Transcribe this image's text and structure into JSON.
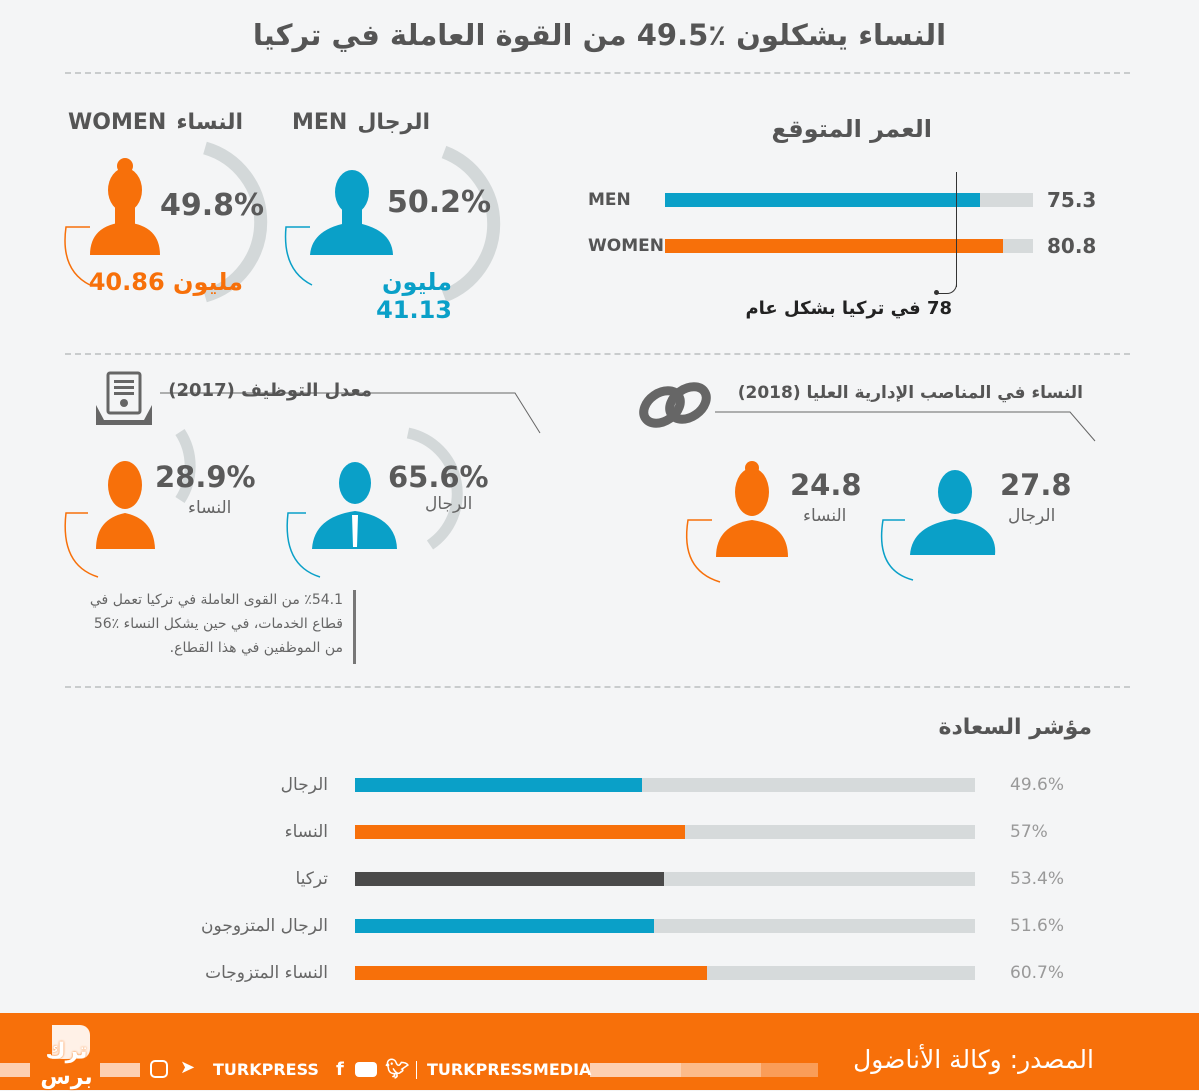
{
  "title": "النساء يشكلون ٪49.5 من القوة العاملة في تركيا",
  "colors": {
    "women": "#f7700a",
    "men": "#0aa0c8",
    "turkey": "#4a4a4a",
    "track": "#d6dadb"
  },
  "population": {
    "women": {
      "label_en": "WOMEN",
      "label_ar": "النساء",
      "percent": "49.8%",
      "count": "40.86",
      "unit": "مليون"
    },
    "men": {
      "label_en": "MEN",
      "label_ar": "الرجال",
      "percent": "50.2%",
      "count": "41.13",
      "unit": "مليون"
    }
  },
  "employment": {
    "title": "معدل التوظيف (2017)",
    "women": {
      "value": "28.9%",
      "label": "النساء"
    },
    "men": {
      "value": "65.6%",
      "label": "الرجال"
    },
    "note": [
      "٪54.1 من القوى العاملة في تركيا تعمل في",
      "قطاع الخدمات، في حين يشكل النساء ٪56",
      "من الموظفين في هذا القطاع."
    ]
  },
  "management": {
    "title": "النساء في المناصب الإدارية العليا (2018)",
    "women": {
      "value": "24.8",
      "label": "النساء"
    },
    "men": {
      "value": "27.8",
      "label": "الرجال"
    }
  },
  "chart_data": [
    {
      "type": "bar",
      "title": "العمر المتوقع",
      "categories": [
        "MEN",
        "WOMEN"
      ],
      "values": [
        75.3,
        80.8
      ],
      "value_labels": [
        "75.3",
        "80.8"
      ],
      "reference": {
        "value": 78,
        "label": "78 في تركيا بشكل عام"
      },
      "xlim": [
        0,
        88
      ]
    },
    {
      "type": "bar",
      "title": "مؤشر السعادة",
      "categories": [
        "الرجال",
        "النساء",
        "تركيا",
        "الرجال المتزوجون",
        "النساء المتزوجات"
      ],
      "values": [
        49.6,
        57,
        53.4,
        51.6,
        60.7
      ],
      "value_labels": [
        "49.6%",
        "57%",
        "53.4%",
        "51.6%",
        "60.7%"
      ],
      "series_colors": [
        "men",
        "women",
        "turkey",
        "men",
        "women"
      ],
      "xlim": [
        0,
        107
      ]
    }
  ],
  "footer": {
    "source": "المصدر: وكالة الأناضول",
    "handle1": "TURKPRESSMEDIA",
    "handle2": "TURKPRESS",
    "logo": "ترك برس"
  }
}
